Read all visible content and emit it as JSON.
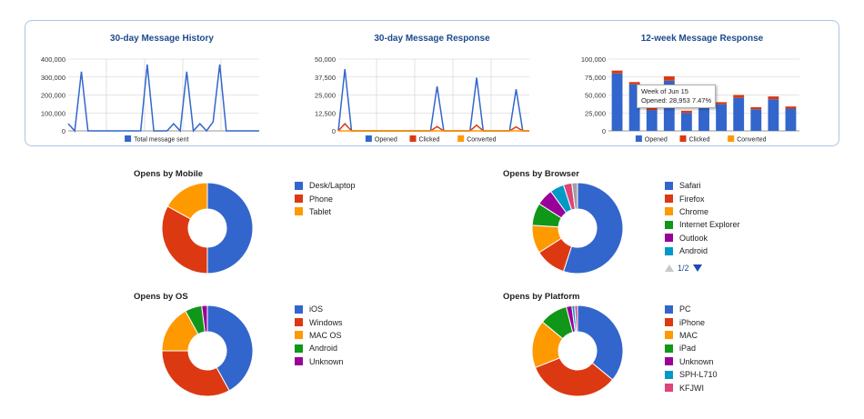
{
  "colors": {
    "blue": "#3366cc",
    "red": "#dc3912",
    "orange": "#ff9900",
    "green": "#109618",
    "purple": "#990099",
    "cyan": "#0099c6",
    "pink": "#dd4477",
    "grid": "#cccccc",
    "panel_border": "#a8c4e4"
  },
  "tooltip": {
    "line1": "Week of Jun 15",
    "line2": "Opened: 28,953 7.47%"
  },
  "pager": {
    "label": "1/2"
  },
  "chart_data": [
    {
      "id": "history",
      "type": "line",
      "title": "30-day Message History",
      "y_ticks": [
        "400,000",
        "300,000",
        "200,000",
        "100,000",
        "0"
      ],
      "ylim": [
        0,
        400000
      ],
      "series": [
        {
          "name": "Total message sent",
          "color": "#3366cc",
          "values": [
            40000,
            0,
            330000,
            0,
            0,
            0,
            0,
            0,
            0,
            0,
            0,
            0,
            370000,
            0,
            0,
            0,
            40000,
            0,
            330000,
            0,
            40000,
            0,
            50000,
            370000,
            0,
            0,
            0,
            0,
            0,
            0
          ]
        }
      ]
    },
    {
      "id": "response",
      "type": "line",
      "title": "30-day Message Response",
      "y_ticks": [
        "50,000",
        "37,500",
        "25,000",
        "12,500",
        "0"
      ],
      "ylim": [
        0,
        50000
      ],
      "series": [
        {
          "name": "Opened",
          "color": "#3366cc",
          "values": [
            0,
            43000,
            0,
            0,
            0,
            0,
            0,
            0,
            0,
            0,
            0,
            0,
            0,
            0,
            0,
            31000,
            0,
            0,
            0,
            0,
            0,
            37000,
            0,
            0,
            0,
            0,
            0,
            29000,
            0,
            0
          ]
        },
        {
          "name": "Clicked",
          "color": "#dc3912",
          "values": [
            0,
            5000,
            0,
            0,
            0,
            0,
            0,
            0,
            0,
            0,
            0,
            0,
            0,
            0,
            0,
            3000,
            0,
            0,
            0,
            0,
            0,
            4000,
            0,
            0,
            0,
            0,
            0,
            2800,
            0,
            0
          ]
        },
        {
          "name": "Converted",
          "color": "#ff9900",
          "values": [
            0,
            0,
            0,
            0,
            0,
            0,
            0,
            0,
            0,
            0,
            0,
            0,
            0,
            0,
            0,
            0,
            0,
            0,
            0,
            0,
            0,
            0,
            0,
            0,
            0,
            0,
            0,
            0,
            0,
            0
          ]
        }
      ]
    },
    {
      "id": "weekly",
      "type": "bar",
      "title": "12-week Message Response",
      "y_ticks": [
        "100,000",
        "75,000",
        "50,000",
        "25,000",
        "0"
      ],
      "ylim": [
        0,
        100000
      ],
      "series": [
        {
          "name": "Opened",
          "color": "#3366cc",
          "values": [
            80000,
            65000,
            28953,
            70000,
            25000,
            33000,
            37000,
            46000,
            30000,
            44000,
            31000
          ]
        },
        {
          "name": "Clicked",
          "color": "#dc3912",
          "values": [
            4000,
            3000,
            3000,
            6000,
            3000,
            3000,
            3000,
            4000,
            3000,
            4000,
            3000
          ]
        },
        {
          "name": "Converted",
          "color": "#ff9900",
          "values": [
            0,
            0,
            0,
            0,
            0,
            0,
            0,
            0,
            0,
            0,
            0
          ]
        }
      ]
    },
    {
      "id": "mobile",
      "type": "pie",
      "title": "Opens by Mobile",
      "slices": [
        {
          "label": "Desk/Laptop",
          "value": 50,
          "color": "#3366cc"
        },
        {
          "label": "Phone",
          "value": 33,
          "color": "#dc3912"
        },
        {
          "label": "Tablet",
          "value": 17,
          "color": "#ff9900"
        }
      ]
    },
    {
      "id": "browser",
      "type": "pie",
      "title": "Opens by Browser",
      "slices": [
        {
          "label": "Safari",
          "value": 55,
          "color": "#3366cc"
        },
        {
          "label": "Firefox",
          "value": 11,
          "color": "#dc3912"
        },
        {
          "label": "Chrome",
          "value": 10,
          "color": "#ff9900"
        },
        {
          "label": "Internet Explorer",
          "value": 8,
          "color": "#109618"
        },
        {
          "label": "Outlook",
          "value": 6,
          "color": "#990099"
        },
        {
          "label": "Android",
          "value": 5,
          "color": "#0099c6"
        },
        {
          "label": "",
          "value": 3,
          "color": "#dd4477"
        },
        {
          "label": "",
          "value": 2,
          "color": "#a0a0a0"
        }
      ]
    },
    {
      "id": "os",
      "type": "pie",
      "title": "Opens by OS",
      "slices": [
        {
          "label": "iOS",
          "value": 42,
          "color": "#3366cc"
        },
        {
          "label": "Windows",
          "value": 33,
          "color": "#dc3912"
        },
        {
          "label": "MAC OS",
          "value": 17,
          "color": "#ff9900"
        },
        {
          "label": "Android",
          "value": 6,
          "color": "#109618"
        },
        {
          "label": "Unknown",
          "value": 2,
          "color": "#990099"
        }
      ]
    },
    {
      "id": "platform",
      "type": "pie",
      "title": "Opens by Platform",
      "slices": [
        {
          "label": "PC",
          "value": 36,
          "color": "#3366cc"
        },
        {
          "label": "iPhone",
          "value": 33,
          "color": "#dc3912"
        },
        {
          "label": "MAC",
          "value": 17,
          "color": "#ff9900"
        },
        {
          "label": "iPad",
          "value": 10,
          "color": "#109618"
        },
        {
          "label": "Unknown",
          "value": 2,
          "color": "#990099"
        },
        {
          "label": "SPH-L710",
          "value": 1,
          "color": "#0099c6"
        },
        {
          "label": "KFJWI",
          "value": 1,
          "color": "#dd4477"
        }
      ]
    }
  ]
}
